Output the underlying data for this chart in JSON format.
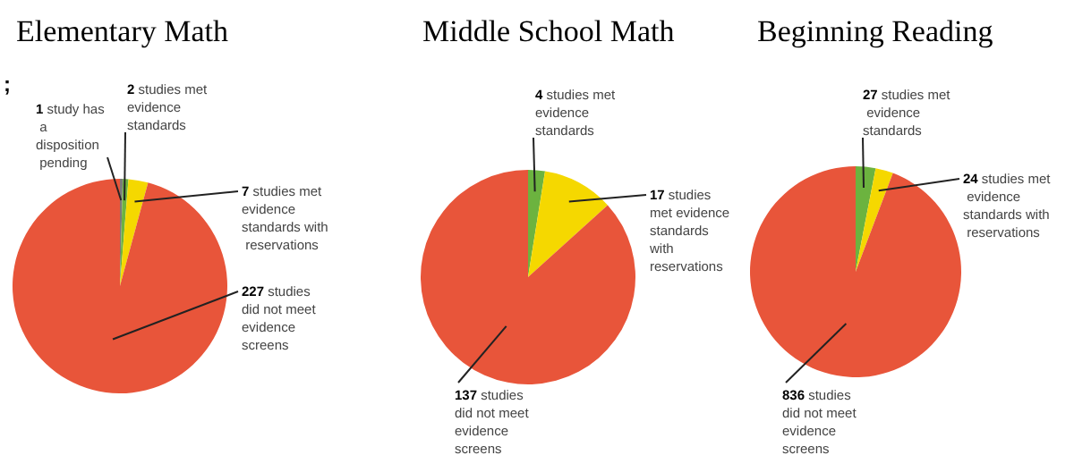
{
  "chart_data": [
    {
      "type": "pie",
      "title": "Elementary Math",
      "categories": [
        "study has a disposition pending",
        "studies met evidence standards",
        "studies met evidence standards with reservations",
        "studies did not meet evidence screens"
      ],
      "values": [
        1,
        2,
        7,
        227
      ],
      "colors": [
        "#7a7a7a",
        "#6cb33f",
        "#f5d800",
        "#e8553a"
      ],
      "data_labels": true,
      "legend": false,
      "annotations": [
        ";"
      ]
    },
    {
      "type": "pie",
      "title": "Middle School Math",
      "categories": [
        "studies met evidence standards",
        "studies met evidence standards with reservations",
        "studies did not meet evidence screens"
      ],
      "values": [
        4,
        17,
        137
      ],
      "colors": [
        "#6cb33f",
        "#f5d800",
        "#e8553a"
      ],
      "data_labels": true,
      "legend": false
    },
    {
      "type": "pie",
      "title": "Beginning Reading",
      "categories": [
        "studies met evidence standards",
        "studies met evidence standards with reservations",
        "studies did not meet evidence screens"
      ],
      "values": [
        27,
        24,
        836
      ],
      "colors": [
        "#6cb33f",
        "#f5d800",
        "#e8553a"
      ],
      "data_labels": true,
      "legend": false
    }
  ]
}
